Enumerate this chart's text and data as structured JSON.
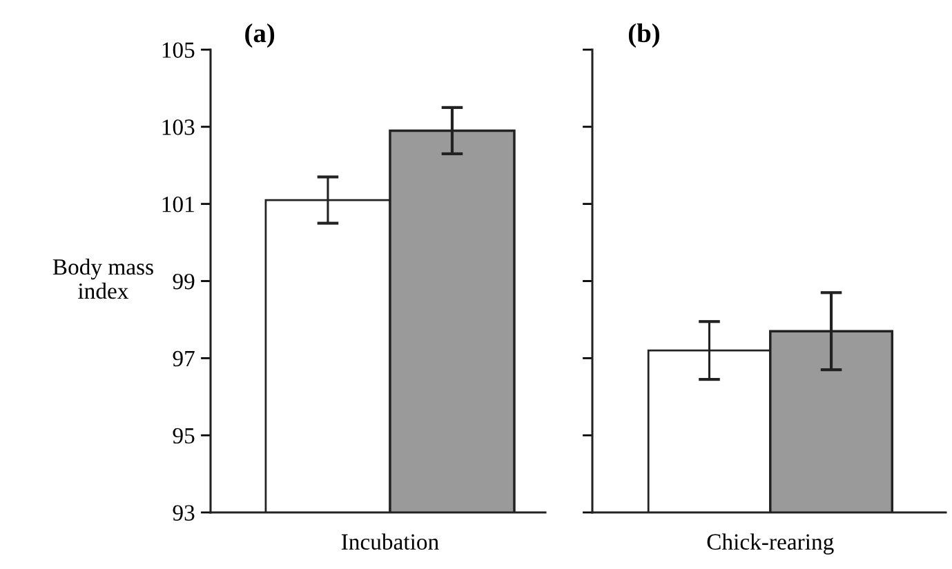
{
  "chart_data": [
    {
      "type": "bar",
      "title": "(a)",
      "ylabel": "Body mass index",
      "categories": [
        "Incubation"
      ],
      "series": [
        {
          "color": "#ffffff",
          "values": [
            101.1
          ],
          "errors": [
            0.6
          ]
        },
        {
          "color": "#9a9a9a",
          "values": [
            102.9
          ],
          "errors": [
            0.6
          ]
        }
      ],
      "ylim": [
        93,
        105
      ],
      "yticks": [
        93,
        95,
        97,
        99,
        101,
        103,
        105
      ]
    },
    {
      "type": "bar",
      "title": "(b)",
      "categories": [
        "Chick-rearing"
      ],
      "series": [
        {
          "color": "#ffffff",
          "values": [
            97.2
          ],
          "errors": [
            0.75
          ]
        },
        {
          "color": "#9a9a9a",
          "values": [
            97.7
          ],
          "errors": [
            1.0
          ]
        }
      ],
      "ylim": [
        93,
        105
      ],
      "yticks": [
        93,
        95,
        97,
        99,
        101,
        103,
        105
      ],
      "tick_labels": "x"
    }
  ]
}
